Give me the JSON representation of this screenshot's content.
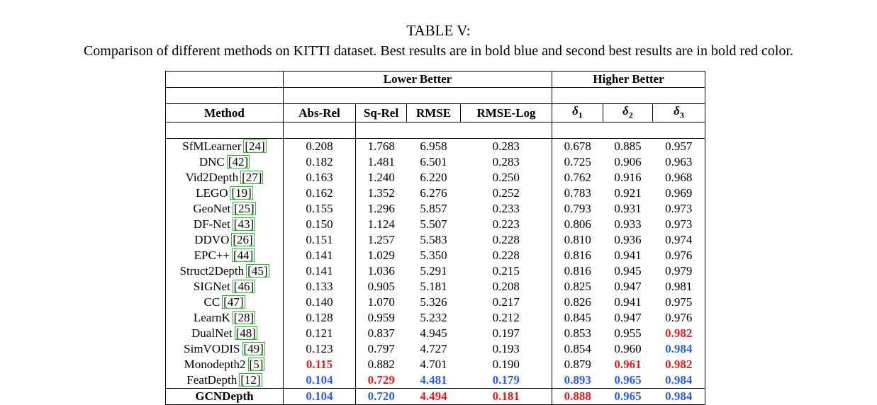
{
  "caption": {
    "title": "TABLE V:",
    "text": "Comparison of different methods on KITTI dataset. Best results are in bold blue and second best results are in bold red color."
  },
  "colors": {
    "best": "#2a5fe0",
    "second": "#e81c1c",
    "citation_box": "#1fc21f"
  },
  "groups": {
    "lower": "Lower Better",
    "higher": "Higher Better"
  },
  "columns": {
    "method": "Method",
    "abs_rel": "Abs-Rel",
    "sq_rel": "Sq-Rel",
    "rmse": "RMSE",
    "rmse_log": "RMSE-Log",
    "delta_symbol": "δ",
    "d1_sub": "1",
    "d2_sub": "2",
    "d3_sub": "3"
  },
  "rows": [
    {
      "method": "SfMLearner",
      "ref": "24",
      "values": [
        "0.208",
        "1.768",
        "6.958",
        "0.283",
        "0.678",
        "0.885",
        "0.957"
      ],
      "marks": [
        "",
        "",
        "",
        "",
        "",
        "",
        ""
      ]
    },
    {
      "method": "DNC",
      "ref": "42",
      "values": [
        "0.182",
        "1.481",
        "6.501",
        "0.283",
        "0.725",
        "0.906",
        "0.963"
      ],
      "marks": [
        "",
        "",
        "",
        "",
        "",
        "",
        ""
      ]
    },
    {
      "method": "Vid2Depth",
      "ref": "27",
      "values": [
        "0.163",
        "1.240",
        "6.220",
        "0.250",
        "0.762",
        "0.916",
        "0.968"
      ],
      "marks": [
        "",
        "",
        "",
        "",
        "",
        "",
        ""
      ]
    },
    {
      "method": "LEGO",
      "ref": "19",
      "values": [
        "0.162",
        "1.352",
        "6.276",
        "0.252",
        "0.783",
        "0.921",
        "0.969"
      ],
      "marks": [
        "",
        "",
        "",
        "",
        "",
        "",
        ""
      ]
    },
    {
      "method": "GeoNet",
      "ref": "25",
      "values": [
        "0.155",
        "1.296",
        "5.857",
        "0.233",
        "0.793",
        "0.931",
        "0.973"
      ],
      "marks": [
        "",
        "",
        "",
        "",
        "",
        "",
        ""
      ]
    },
    {
      "method": "DF-Net",
      "ref": "43",
      "values": [
        "0.150",
        "1.124",
        "5.507",
        "0.223",
        "0.806",
        "0.933",
        "0.973"
      ],
      "marks": [
        "",
        "",
        "",
        "",
        "",
        "",
        ""
      ]
    },
    {
      "method": "DDVO",
      "ref": "26",
      "values": [
        "0.151",
        "1.257",
        "5.583",
        "0.228",
        "0.810",
        "0.936",
        "0.974"
      ],
      "marks": [
        "",
        "",
        "",
        "",
        "",
        "",
        ""
      ]
    },
    {
      "method": "EPC++",
      "ref": "44",
      "values": [
        "0.141",
        "1.029",
        "5.350",
        "0.228",
        "0.816",
        "0.941",
        "0.976"
      ],
      "marks": [
        "",
        "",
        "",
        "",
        "",
        "",
        ""
      ]
    },
    {
      "method": "Struct2Depth",
      "ref": "45",
      "values": [
        "0.141",
        "1.036",
        "5.291",
        "0.215",
        "0.816",
        "0.945",
        "0.979"
      ],
      "marks": [
        "",
        "",
        "",
        "",
        "",
        "",
        ""
      ]
    },
    {
      "method": "SIGNet",
      "ref": "46",
      "values": [
        "0.133",
        "0.905",
        "5.181",
        "0.208",
        "0.825",
        "0.947",
        "0.981"
      ],
      "marks": [
        "",
        "",
        "",
        "",
        "",
        "",
        ""
      ]
    },
    {
      "method": "CC",
      "ref": "47",
      "values": [
        "0.140",
        "1.070",
        "5.326",
        "0.217",
        "0.826",
        "0.941",
        "0.975"
      ],
      "marks": [
        "",
        "",
        "",
        "",
        "",
        "",
        ""
      ]
    },
    {
      "method": "LearnK",
      "ref": "28",
      "values": [
        "0.128",
        "0.959",
        "5.232",
        "0.212",
        "0.845",
        "0.947",
        "0.976"
      ],
      "marks": [
        "",
        "",
        "",
        "",
        "",
        "",
        ""
      ]
    },
    {
      "method": "DualNet",
      "ref": "48",
      "values": [
        "0.121",
        "0.837",
        "4.945",
        "0.197",
        "0.853",
        "0.955",
        "0.982"
      ],
      "marks": [
        "",
        "",
        "",
        "",
        "",
        "",
        "second"
      ]
    },
    {
      "method": "SimVODIS",
      "ref": "49",
      "values": [
        "0.123",
        "0.797",
        "4.727",
        "0.193",
        "0.854",
        "0.960",
        "0.984"
      ],
      "marks": [
        "",
        "",
        "",
        "",
        "",
        "",
        "best"
      ]
    },
    {
      "method": "Monodepth2",
      "ref": "5",
      "values": [
        "0.115",
        "0.882",
        "4.701",
        "0.190",
        "0.879",
        "0.961",
        "0.982"
      ],
      "marks": [
        "second",
        "",
        "",
        "",
        "",
        "second",
        "second"
      ]
    },
    {
      "method": "FeatDepth",
      "ref": "12",
      "values": [
        "0.104",
        "0.729",
        "4.481",
        "0.179",
        "0.893",
        "0.965",
        "0.984"
      ],
      "marks": [
        "best",
        "second",
        "best",
        "best",
        "best",
        "best",
        "best"
      ]
    }
  ],
  "final_row": {
    "method": "GCNDepth",
    "values": [
      "0.104",
      "0.720",
      "4.494",
      "0.181",
      "0.888",
      "0.965",
      "0.984"
    ],
    "marks": [
      "best",
      "best",
      "second",
      "second",
      "second",
      "best",
      "best"
    ]
  }
}
